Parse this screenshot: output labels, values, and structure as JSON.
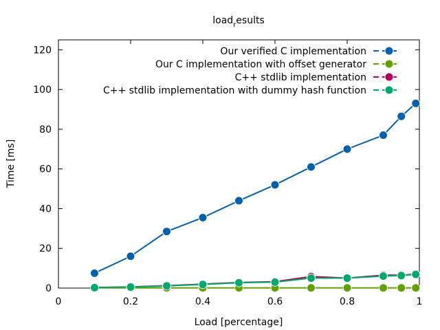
{
  "chart_data": {
    "type": "line",
    "title": "load",
    "title_subscript": "r",
    "title_suffix": "esults",
    "xlabel": "Load [percentage]",
    "ylabel": "Time [ms]",
    "xlim": [
      0,
      1
    ],
    "ylim": [
      0,
      125
    ],
    "xticks": [
      0,
      0.2,
      0.4,
      0.6,
      0.8,
      1
    ],
    "xtick_labels": [
      "0",
      "0.2",
      "0.4",
      "0.6",
      "0.8",
      "1"
    ],
    "yticks": [
      0,
      20,
      40,
      60,
      80,
      100,
      120
    ],
    "ytick_labels": [
      "0",
      "20",
      "40",
      "60",
      "80",
      "100",
      "120"
    ],
    "grid": false,
    "legend_position": "top-right",
    "x": [
      0.1,
      0.2,
      0.3,
      0.4,
      0.5,
      0.6,
      0.7,
      0.8,
      0.9,
      0.95,
      0.99
    ],
    "series": [
      {
        "name": "Our verified C implementation",
        "color": "#0060ad",
        "values": [
          7.5,
          16,
          28.5,
          35.5,
          44,
          52,
          61,
          70,
          77,
          86.5,
          93
        ]
      },
      {
        "name": "Our C implementation with offset generator",
        "color": "#5ea100",
        "values": [
          0.1,
          0.1,
          0.1,
          0.1,
          0.1,
          0.1,
          0.1,
          0.1,
          0.1,
          0.1,
          0.1
        ]
      },
      {
        "name": "C++ stdlib implementation",
        "color": "#b0005e",
        "values": [
          0.3,
          0.6,
          1.2,
          2,
          2.8,
          3.2,
          5.8,
          5.0,
          6.5,
          6.5,
          7.0
        ]
      },
      {
        "name": "C++ stdlib implementation with dummy hash function",
        "color": "#00a86b",
        "values": [
          0.2,
          0.5,
          1.1,
          1.8,
          2.7,
          3.0,
          5.0,
          5.0,
          6.0,
          6.3,
          6.9
        ]
      }
    ]
  }
}
